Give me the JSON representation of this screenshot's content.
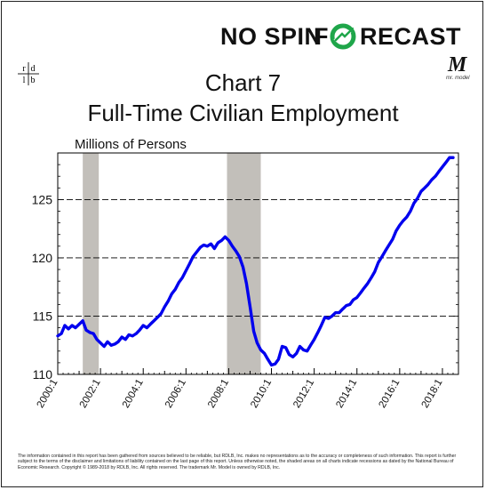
{
  "brand": {
    "part1": "NO SPIN",
    "part2_f": "F",
    "part2_rest": "RECAST",
    "full": "NO SPIN FORECAST"
  },
  "logo": {
    "left": "r d",
    "right": "l b"
  },
  "mr_model": {
    "mark": "M",
    "caption": "mr. model"
  },
  "title_line1": "Chart 7",
  "title_line2": "Full-Time Civilian Employment",
  "units_label": "Millions of Persons",
  "disclaimer": "The information contained in this report has been gathered from sources believed to be reliable, but RDLB, Inc. makes no representations as to the accuracy or completeness of such information. This report is further subject to the terms of the disclaimer and limitations of liability contained on the last page of this report. Unless otherwise noted, the shaded areas on all charts indicate recessions as dated by the National Bureau of Economic Research. Copyright © 1989-2018 by RDLB, Inc. All rights reserved. The trademark Mr. Model is owned by RDLB, Inc.",
  "colors": {
    "line": "#0000ee",
    "recession": "#c2bfba",
    "grid": "#000000"
  },
  "chart_data": {
    "type": "line",
    "xlim": [
      2000.0,
      2018.75
    ],
    "ylim": [
      110,
      129
    ],
    "ytick_values": [
      110,
      115,
      120,
      125
    ],
    "ytick_labels": [
      "110",
      "115",
      "120",
      "125"
    ],
    "xtick_values": [
      2000,
      2002,
      2004,
      2006,
      2008,
      2010,
      2012,
      2014,
      2016,
      2018
    ],
    "xtick_labels": [
      "2000:1",
      "2002:1",
      "2004:1",
      "2006:1",
      "2008:1",
      "2010:1",
      "2012:1",
      "2014:1",
      "2016:1",
      "2018:1"
    ],
    "recessions": [
      [
        2001.17,
        2001.92
      ],
      [
        2007.92,
        2009.5
      ]
    ],
    "grid_y": true,
    "series": [
      {
        "x": [
          2000.0,
          2000.17,
          2000.33,
          2000.5,
          2000.67,
          2000.83,
          2001.0,
          2001.17,
          2001.33,
          2001.5,
          2001.67,
          2001.83,
          2002.0,
          2002.17,
          2002.33,
          2002.5,
          2002.67,
          2002.83,
          2003.0,
          2003.17,
          2003.33,
          2003.5,
          2003.67,
          2003.83,
          2004.0,
          2004.17,
          2004.33,
          2004.5,
          2004.67,
          2004.83,
          2005.0,
          2005.17,
          2005.33,
          2005.5,
          2005.67,
          2005.83,
          2006.0,
          2006.17,
          2006.33,
          2006.5,
          2006.67,
          2006.83,
          2007.0,
          2007.17,
          2007.33,
          2007.5,
          2007.67,
          2007.83,
          2008.0,
          2008.17,
          2008.33,
          2008.5,
          2008.67,
          2008.83,
          2009.0,
          2009.17,
          2009.33,
          2009.5,
          2009.67,
          2009.83,
          2010.0,
          2010.17,
          2010.33,
          2010.5,
          2010.67,
          2010.83,
          2011.0,
          2011.17,
          2011.33,
          2011.5,
          2011.67,
          2011.83,
          2012.0,
          2012.17,
          2012.33,
          2012.5,
          2012.67,
          2012.83,
          2013.0,
          2013.17,
          2013.33,
          2013.5,
          2013.67,
          2013.83,
          2014.0,
          2014.17,
          2014.33,
          2014.5,
          2014.67,
          2014.83,
          2015.0,
          2015.17,
          2015.33,
          2015.5,
          2015.67,
          2015.83,
          2016.0,
          2016.17,
          2016.33,
          2016.5,
          2016.67,
          2016.83,
          2017.0,
          2017.17,
          2017.33,
          2017.5,
          2017.67,
          2017.83,
          2018.0,
          2018.17,
          2018.33,
          2018.5
        ],
        "y": [
          113.3,
          113.5,
          114.2,
          113.9,
          114.2,
          114.0,
          114.3,
          114.6,
          113.8,
          113.6,
          113.5,
          113.0,
          112.7,
          112.4,
          112.8,
          112.5,
          112.6,
          112.8,
          113.2,
          113.0,
          113.4,
          113.3,
          113.5,
          113.8,
          114.2,
          114.0,
          114.3,
          114.6,
          114.9,
          115.2,
          115.8,
          116.3,
          116.9,
          117.3,
          117.9,
          118.3,
          118.9,
          119.5,
          120.1,
          120.5,
          120.9,
          121.1,
          121.0,
          121.2,
          120.8,
          121.3,
          121.5,
          121.8,
          121.5,
          121.0,
          120.6,
          120.1,
          119.2,
          117.8,
          115.8,
          113.7,
          112.7,
          112.1,
          111.8,
          111.3,
          110.8,
          110.9,
          111.3,
          112.4,
          112.3,
          111.7,
          111.5,
          111.8,
          112.4,
          112.1,
          112.0,
          112.5,
          113.0,
          113.6,
          114.2,
          114.9,
          114.8,
          115.0,
          115.3,
          115.3,
          115.6,
          115.9,
          116.0,
          116.4,
          116.6,
          117.0,
          117.4,
          117.8,
          118.3,
          118.8,
          119.6,
          120.1,
          120.6,
          121.1,
          121.6,
          122.3,
          122.8,
          123.2,
          123.5,
          124.0,
          124.7,
          125.1,
          125.7,
          126.0,
          126.3,
          126.7,
          127.0,
          127.4,
          127.8,
          128.2,
          128.6,
          128.6
        ]
      }
    ]
  }
}
